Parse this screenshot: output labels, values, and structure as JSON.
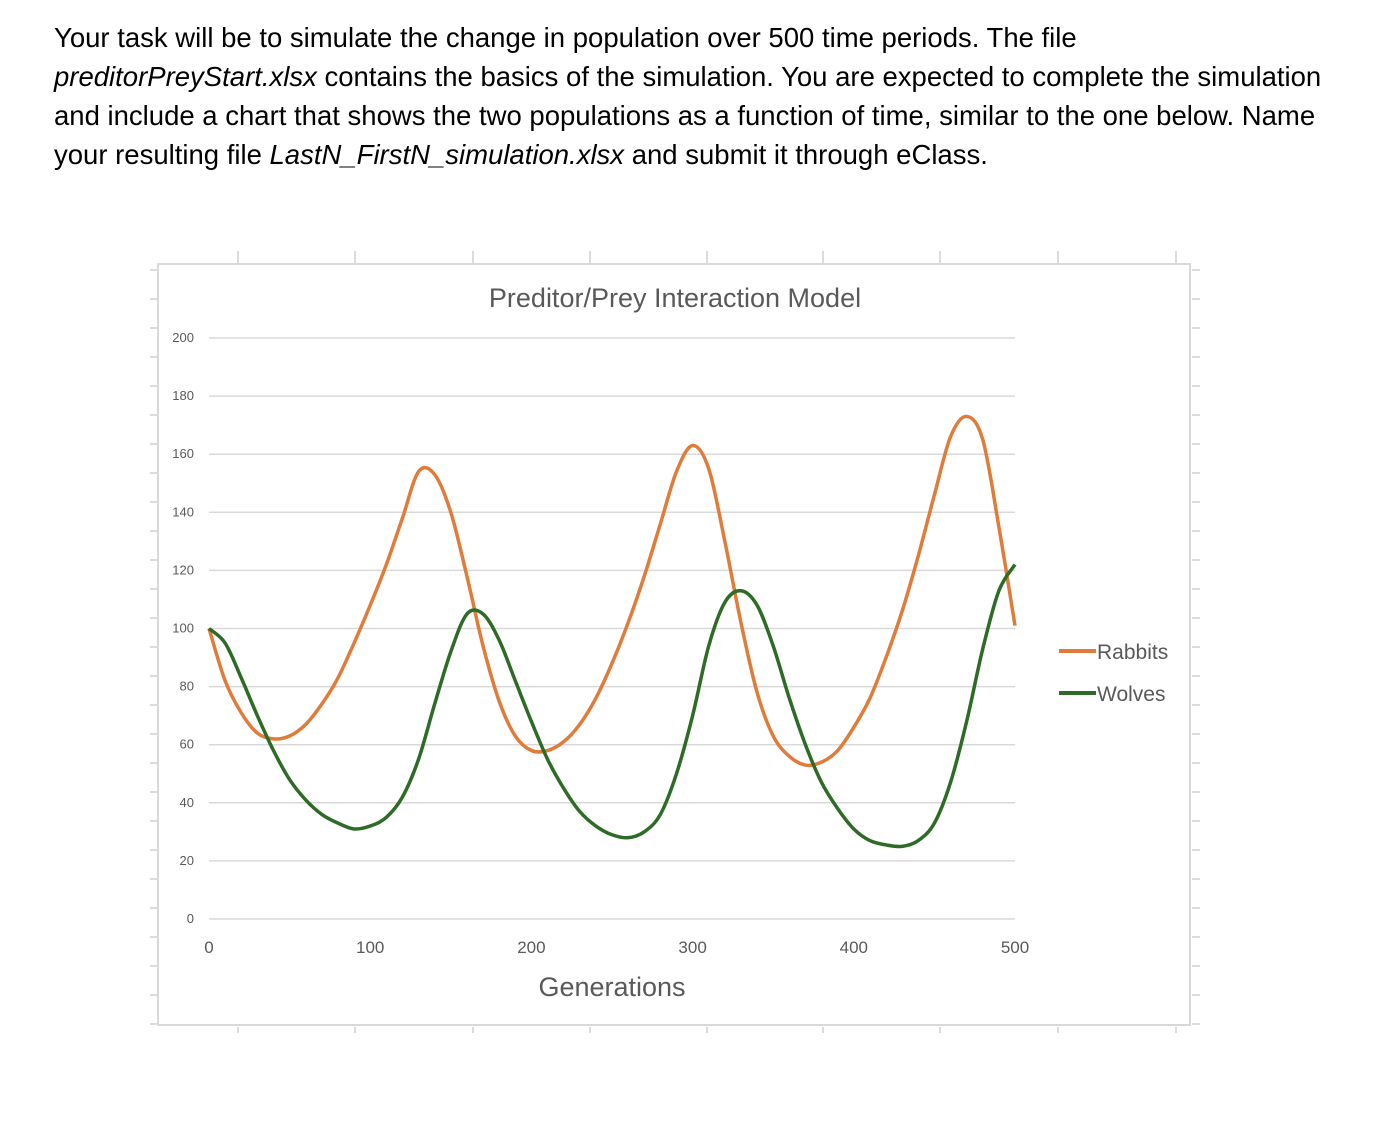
{
  "instructions": {
    "part1": "Your task will be to simulate the change in population over 500 time periods.  The file ",
    "file_start": "preditorPreyStart.xlsx",
    "part2": " contains the basics of the simulation. You are expected to complete the simulation and include a chart that shows the two populations as a function of time, similar to the one below.  Name your resulting file ",
    "file_result": "LastN_FirstN_simulation.xlsx",
    "part3": " and submit it through eClass."
  },
  "chart_data": {
    "type": "line",
    "title": "Preditor/Prey Interaction Model",
    "xlabel": "Generations",
    "ylabel": "",
    "xlim": [
      0,
      500
    ],
    "ylim": [
      0,
      200
    ],
    "xticks": [
      0,
      100,
      200,
      300,
      400,
      500
    ],
    "yticks": [
      0,
      20,
      40,
      60,
      80,
      100,
      120,
      140,
      160,
      180,
      200
    ],
    "grid": "horizontal",
    "legend": "right",
    "x": [
      0,
      10,
      20,
      30,
      40,
      50,
      60,
      70,
      80,
      90,
      100,
      110,
      120,
      130,
      140,
      150,
      160,
      170,
      180,
      190,
      200,
      210,
      220,
      230,
      240,
      250,
      260,
      270,
      280,
      290,
      300,
      310,
      320,
      330,
      340,
      350,
      360,
      370,
      380,
      390,
      400,
      410,
      420,
      430,
      440,
      450,
      460,
      470,
      480,
      490,
      500
    ],
    "series": [
      {
        "name": "Rabbits",
        "color": "#e07b39",
        "values": [
          100,
          82,
          71,
          64,
          62,
          63,
          67,
          74,
          83,
          95,
          108,
          122,
          138,
          154,
          153,
          140,
          118,
          94,
          75,
          63,
          58,
          58,
          61,
          67,
          76,
          88,
          102,
          118,
          136,
          154,
          163,
          155,
          130,
          102,
          78,
          63,
          56,
          53,
          54,
          58,
          66,
          76,
          90,
          106,
          125,
          146,
          166,
          173,
          165,
          135,
          101
        ]
      },
      {
        "name": "Wolves",
        "color": "#2e6b27",
        "values": [
          100,
          95,
          83,
          70,
          58,
          48,
          41,
          36,
          33,
          31,
          32,
          35,
          42,
          55,
          74,
          92,
          105,
          105,
          96,
          82,
          68,
          55,
          45,
          37,
          32,
          29,
          28,
          30,
          36,
          50,
          70,
          94,
          109,
          113,
          108,
          94,
          76,
          60,
          47,
          38,
          31,
          27,
          25.5,
          25,
          27,
          33,
          47,
          68,
          93,
          113,
          122
        ]
      }
    ]
  }
}
